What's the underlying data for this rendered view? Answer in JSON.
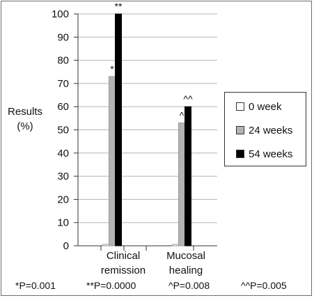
{
  "chart_data": {
    "type": "bar",
    "ylabel": "Results\n(%)",
    "ylim": [
      0,
      100
    ],
    "yticks": [
      "0",
      "10",
      "20",
      "30",
      "40",
      "50",
      "60",
      "70",
      "80",
      "90",
      "100"
    ],
    "categories": [
      "Clinical\nremission",
      "Mucosal\nhealing"
    ],
    "series": [
      {
        "name": "0 week",
        "values": [
          0,
          0
        ],
        "color": "#ffffff"
      },
      {
        "name": "24 weeks",
        "values": [
          73,
          53
        ],
        "color": "#b3b3b3"
      },
      {
        "name": "54 weeks",
        "values": [
          100,
          60
        ],
        "color": "#000000"
      }
    ],
    "annotations": [
      {
        "category": 0,
        "series": 1,
        "text": "*"
      },
      {
        "category": 0,
        "series": 2,
        "text": "**"
      },
      {
        "category": 1,
        "series": 1,
        "text": "^"
      },
      {
        "category": 1,
        "series": 2,
        "text": "^^"
      }
    ],
    "grid": true,
    "legend": "right"
  },
  "footnotes": [
    "*P=0.001",
    "**P=0.0000",
    "^P=0.008",
    "^^P=0.005"
  ]
}
